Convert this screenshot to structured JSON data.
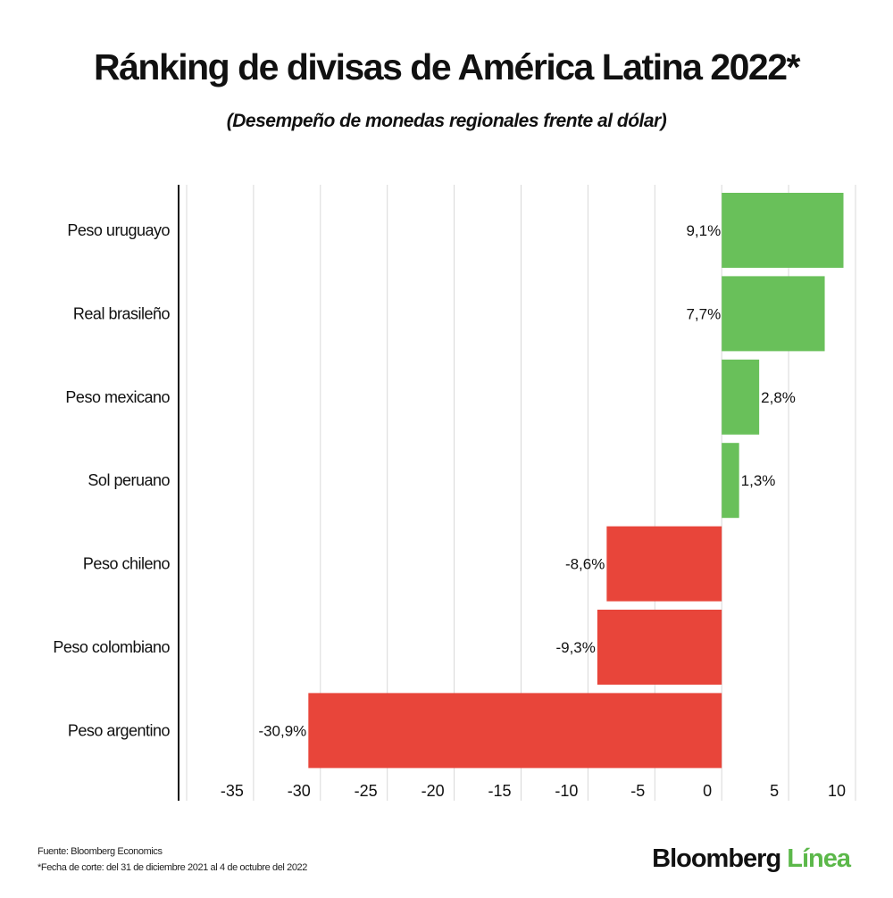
{
  "title": "Ránking de divisas de América Latina 2022*",
  "subtitle": "(Desempeño de monedas regionales frente al dólar)",
  "footer": {
    "source": "Fuente: Bloomberg Economics",
    "note": "*Fecha de corte: del 31 de diciembre 2021 al 4 de octubre del 2022"
  },
  "logo": {
    "part1": "Bloomberg",
    "part2": "Línea"
  },
  "colors": {
    "positive": "#69c05a",
    "negative": "#e8453a"
  },
  "chart_data": {
    "type": "bar",
    "orientation": "horizontal",
    "categories": [
      "Peso uruguayo",
      "Real brasileño",
      "Peso mexicano",
      "Sol peruano",
      "Peso chileno",
      "Peso colombiano",
      "Peso argentino"
    ],
    "values": [
      9.1,
      7.7,
      2.8,
      1.3,
      -8.6,
      -9.3,
      -30.9
    ],
    "data_labels": [
      "9,1%",
      "7,7%",
      "2,8%",
      "1,3%",
      "-8,6%",
      "-9,3%",
      "-30,9%"
    ],
    "xlim": [
      -40,
      10
    ],
    "xticks": [
      -35,
      -30,
      -25,
      -20,
      -15,
      -10,
      -5,
      0,
      5,
      10
    ],
    "grid": true
  }
}
